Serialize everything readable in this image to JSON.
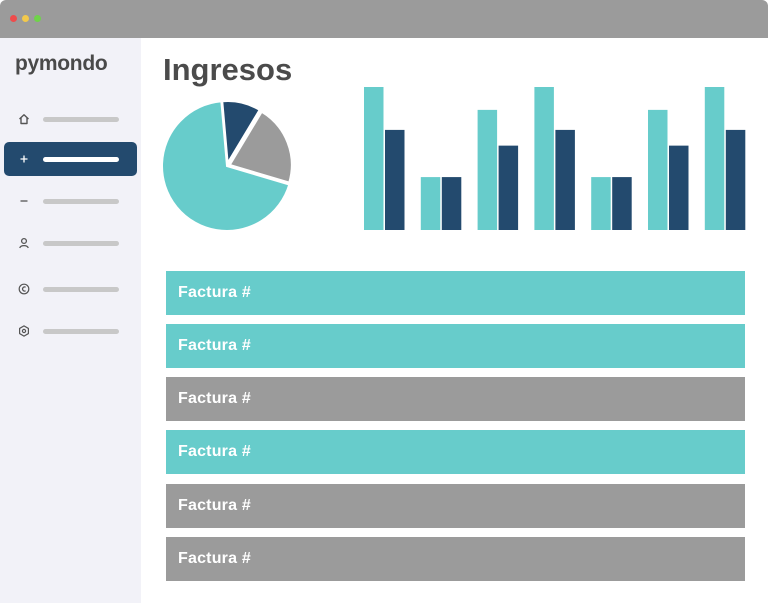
{
  "window": {
    "controls": [
      "close",
      "minimize",
      "maximize"
    ]
  },
  "app": {
    "logo": "pymondo"
  },
  "sidebar": {
    "items": [
      {
        "icon": "home-icon",
        "active": false
      },
      {
        "icon": "plus-icon",
        "active": true
      },
      {
        "icon": "minus-icon",
        "active": false
      },
      {
        "icon": "user-icon",
        "active": false
      },
      {
        "icon": "currency-icon",
        "active": false
      },
      {
        "icon": "settings-icon",
        "active": false
      }
    ]
  },
  "main": {
    "title": "Ingresos"
  },
  "colors": {
    "teal": "#67cccb",
    "navy": "#234a6e",
    "gray": "#9b9b9b"
  },
  "chart_data": [
    {
      "type": "pie",
      "slices": [
        {
          "value": 69,
          "color": "#67cccb"
        },
        {
          "value": 10,
          "color": "#234a6e"
        },
        {
          "value": 21,
          "color": "#9b9b9b"
        }
      ]
    },
    {
      "type": "bar",
      "categories": [
        "",
        "",
        "",
        "",
        "",
        "",
        ""
      ],
      "ylim": [
        0,
        100
      ],
      "series": [
        {
          "color": "#67cccb",
          "values": [
            100,
            37,
            84,
            100,
            37,
            84,
            100
          ]
        },
        {
          "color": "#234a6e",
          "values": [
            70,
            37,
            59,
            70,
            37,
            59,
            70
          ]
        }
      ]
    }
  ],
  "invoices": [
    {
      "label": "Factura #",
      "color": "#67cccb"
    },
    {
      "label": "Factura #",
      "color": "#67cccb"
    },
    {
      "label": "Factura #",
      "color": "#9b9b9b"
    },
    {
      "label": "Factura #",
      "color": "#67cccb"
    },
    {
      "label": "Factura #",
      "color": "#9b9b9b"
    },
    {
      "label": "Factura #",
      "color": "#9b9b9b"
    }
  ]
}
